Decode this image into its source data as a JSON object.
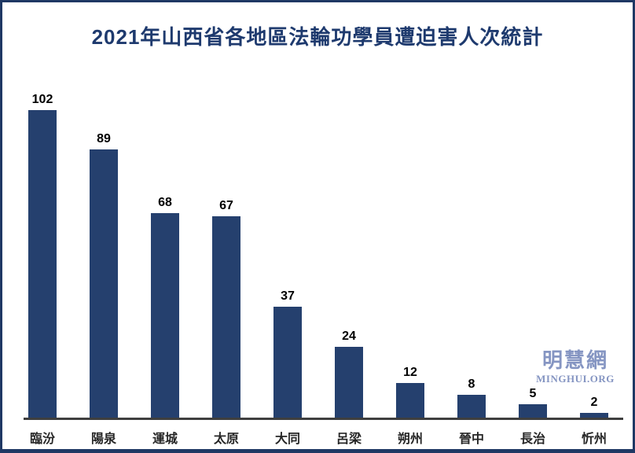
{
  "chart_data": {
    "type": "bar",
    "title": "2021年山西省各地區法輪功學員遭迫害人次統計",
    "categories": [
      "臨汾",
      "陽泉",
      "運城",
      "太原",
      "大同",
      "呂梁",
      "朔州",
      "晉中",
      "長治",
      "忻州"
    ],
    "values": [
      102,
      89,
      68,
      67,
      37,
      24,
      12,
      8,
      5,
      2
    ],
    "xlabel": "",
    "ylabel": "",
    "ylim": [
      0,
      110
    ],
    "grid": false,
    "legend_position": "none",
    "value_labels_shown": true,
    "bar_color": "#25406e",
    "value_label_color": "#000000",
    "axis_line_color": "#3f3f3f"
  },
  "logo": {
    "chinese": "明慧網",
    "english": "MINGHUI.ORG",
    "color": "#8595c2"
  },
  "colors": {
    "title": "#1e3a6e",
    "frame_border": "#1f3864",
    "background": "#ffffff"
  }
}
